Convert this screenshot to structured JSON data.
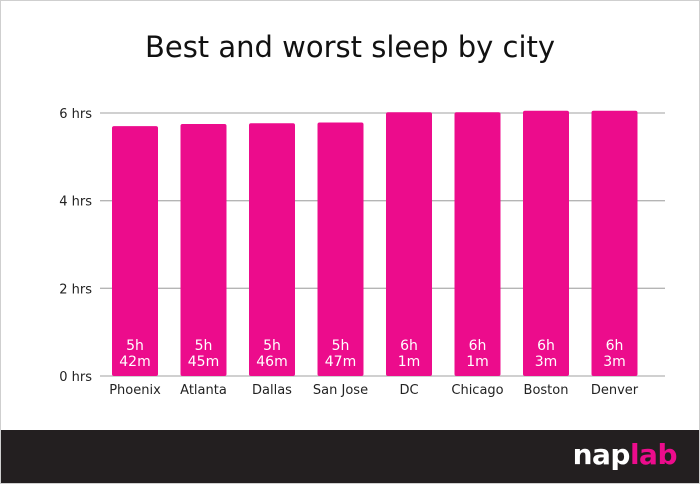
{
  "chart_data": {
    "type": "bar",
    "title": "Best and worst sleep by city",
    "xlabel": "",
    "ylabel": "",
    "ylim": [
      0,
      6
    ],
    "yticks": [
      {
        "value": 0,
        "label": "0 hrs"
      },
      {
        "value": 2,
        "label": "2 hrs"
      },
      {
        "value": 4,
        "label": "4 hrs"
      },
      {
        "value": 6,
        "label": "6 hrs"
      }
    ],
    "grid": true,
    "categories": [
      "Phoenix",
      "Atlanta",
      "Dallas",
      "San Jose",
      "DC",
      "Chicago",
      "Boston",
      "Denver"
    ],
    "values": [
      5.7,
      5.75,
      5.767,
      5.783,
      6.017,
      6.017,
      6.05,
      6.05
    ],
    "data_labels": [
      [
        "5h",
        "42m"
      ],
      [
        "5h",
        "45m"
      ],
      [
        "5h",
        "46m"
      ],
      [
        "5h",
        "47m"
      ],
      [
        "6h",
        "1m"
      ],
      [
        "6h",
        "1m"
      ],
      [
        "6h",
        "3m"
      ],
      [
        "6h",
        "3m"
      ]
    ],
    "bar_color": "#ec0c8c"
  },
  "footer": {
    "logo_part1": "nap",
    "logo_part2": "lab"
  }
}
